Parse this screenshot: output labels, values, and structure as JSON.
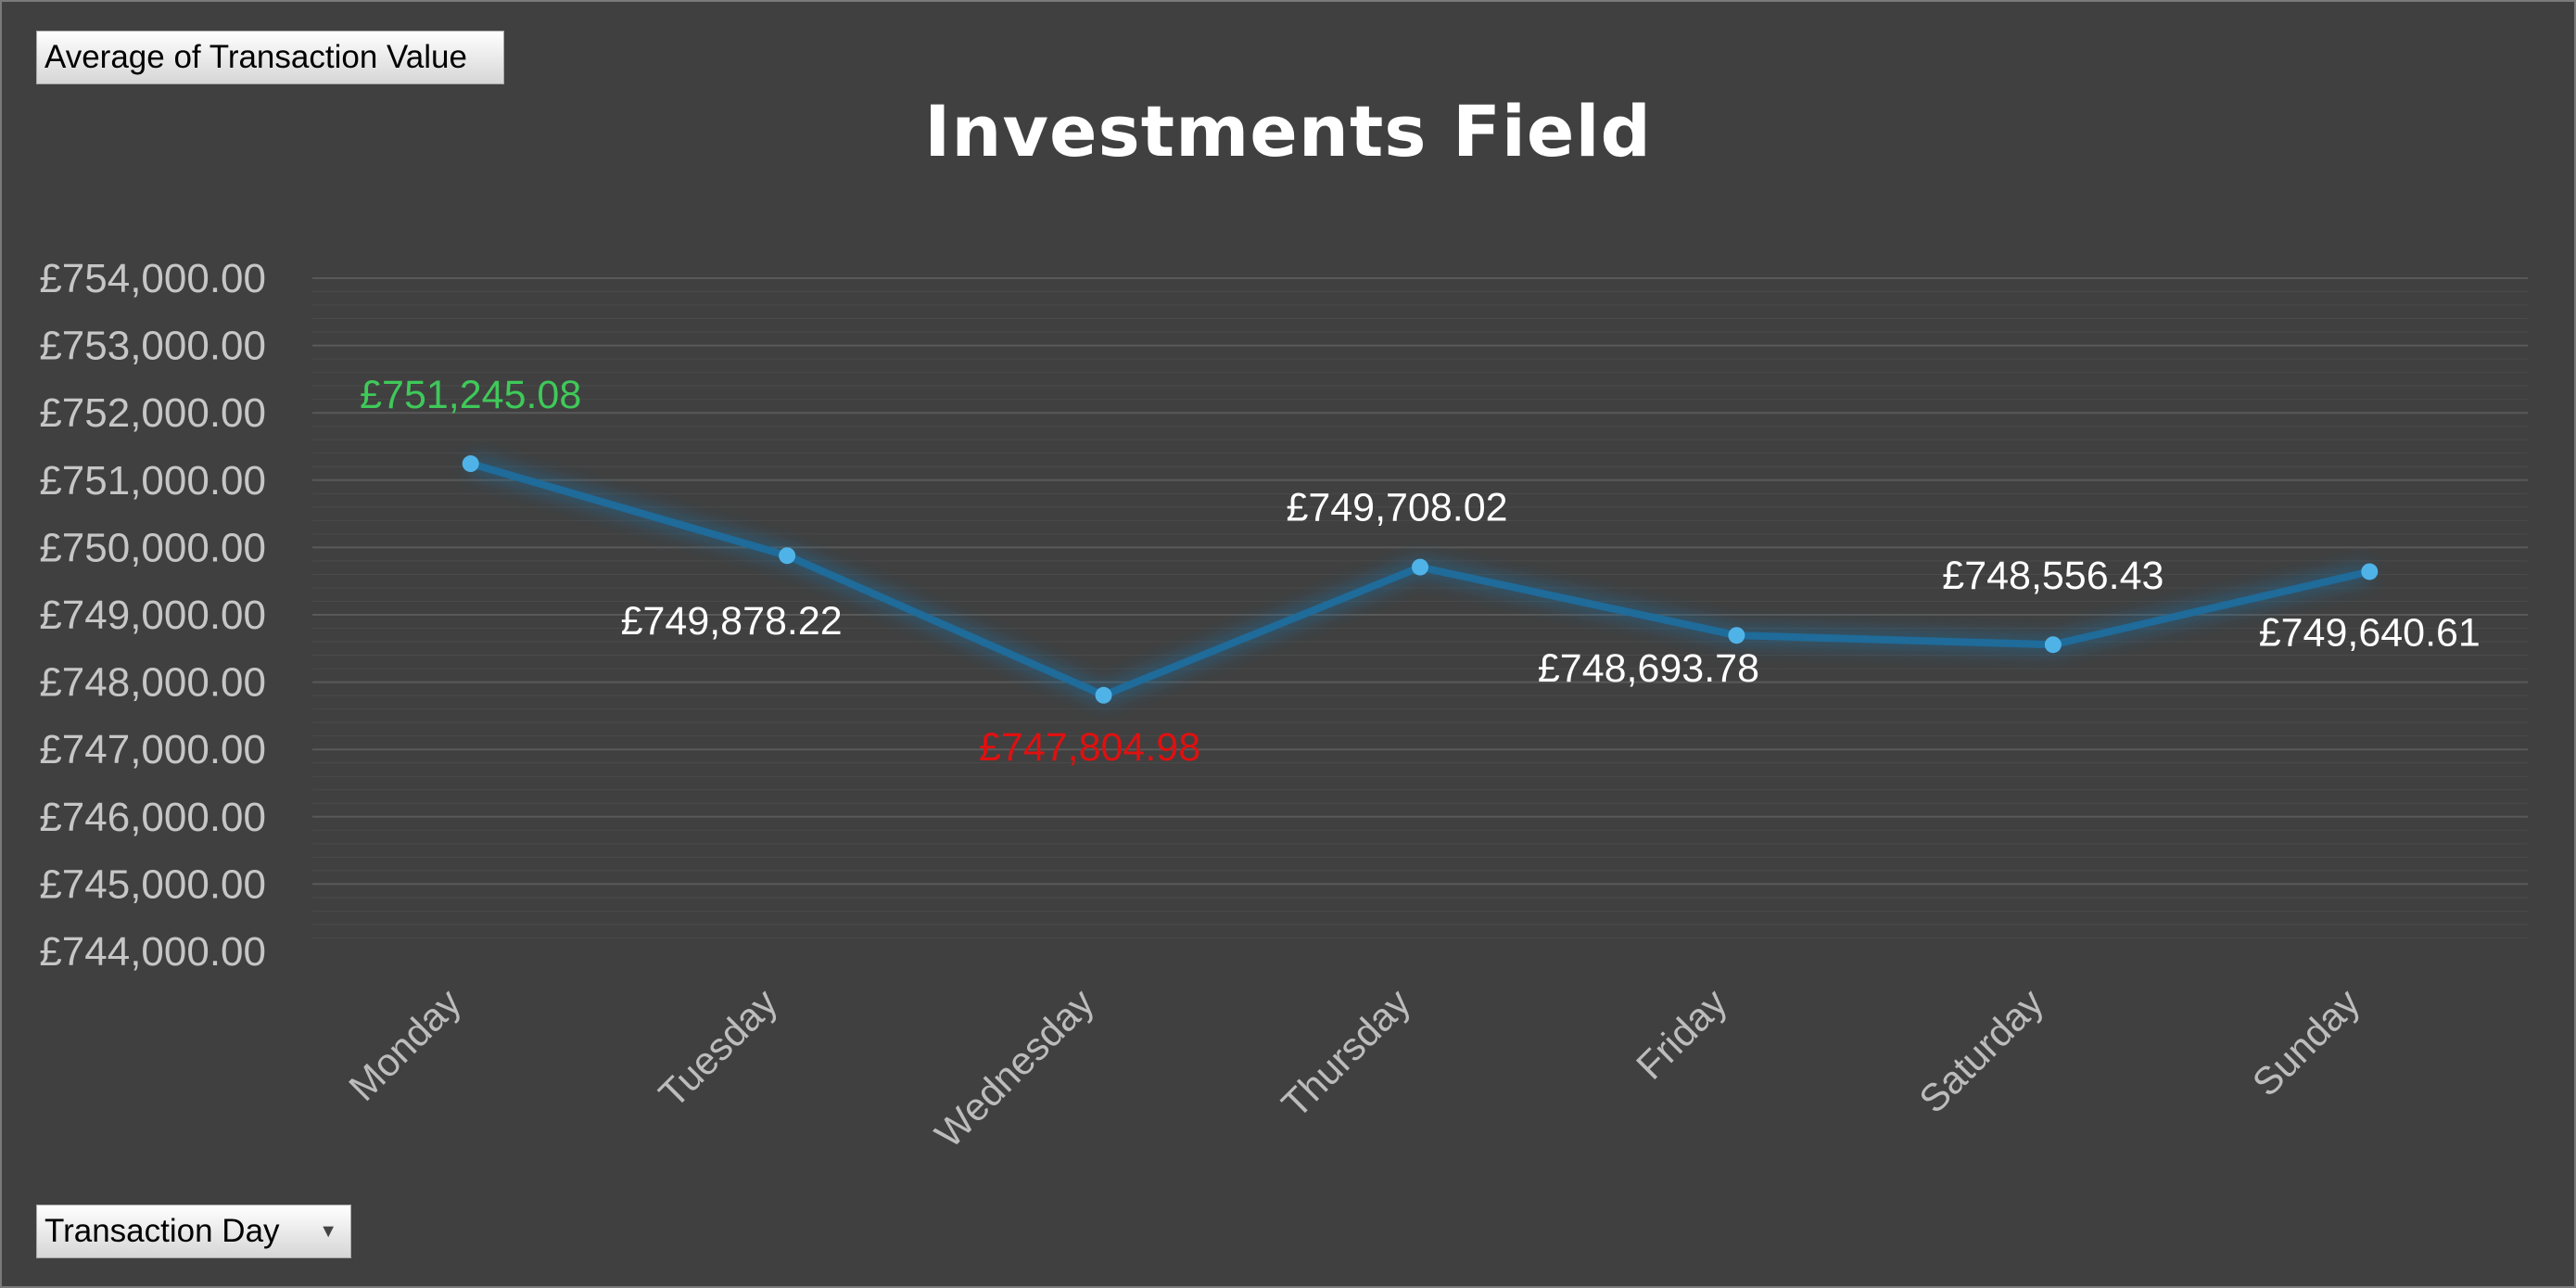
{
  "pivot_fields": {
    "values_field": "Average of Transaction Value",
    "axis_field": "Transaction Day"
  },
  "chart_data": {
    "type": "line",
    "title": "Investments Field",
    "xlabel": "",
    "ylabel": "",
    "categories": [
      "Monday",
      "Tuesday",
      "Wednesday",
      "Thursday",
      "Friday",
      "Saturday",
      "Sunday"
    ],
    "series": [
      {
        "values": [
          751245.08,
          749878.22,
          747804.98,
          749708.02,
          748693.78,
          748556.43,
          749640.61
        ],
        "data_labels": [
          "£751,245.08",
          "£749,878.22",
          "£747,804.98",
          "£749,708.02",
          "£748,693.78",
          "£748,556.43",
          "£749,640.61"
        ]
      }
    ],
    "ylim": [
      744000,
      754000
    ],
    "y_ticks": [
      "£754,000.00",
      "£753,000.00",
      "£752,000.00",
      "£751,000.00",
      "£750,000.00",
      "£749,000.00",
      "£748,000.00",
      "£747,000.00",
      "£746,000.00",
      "£745,000.00",
      "£744,000.00"
    ],
    "grid": true,
    "legend": "none",
    "colors": {
      "background": "#404040",
      "line": "#1f6b9a",
      "marker": "#4fb3e8",
      "label": "#ffffff",
      "max_label": "#3fc95a",
      "min_label": "#e01010",
      "grid": "#595959",
      "axis_text": "#c6c6c6"
    }
  }
}
